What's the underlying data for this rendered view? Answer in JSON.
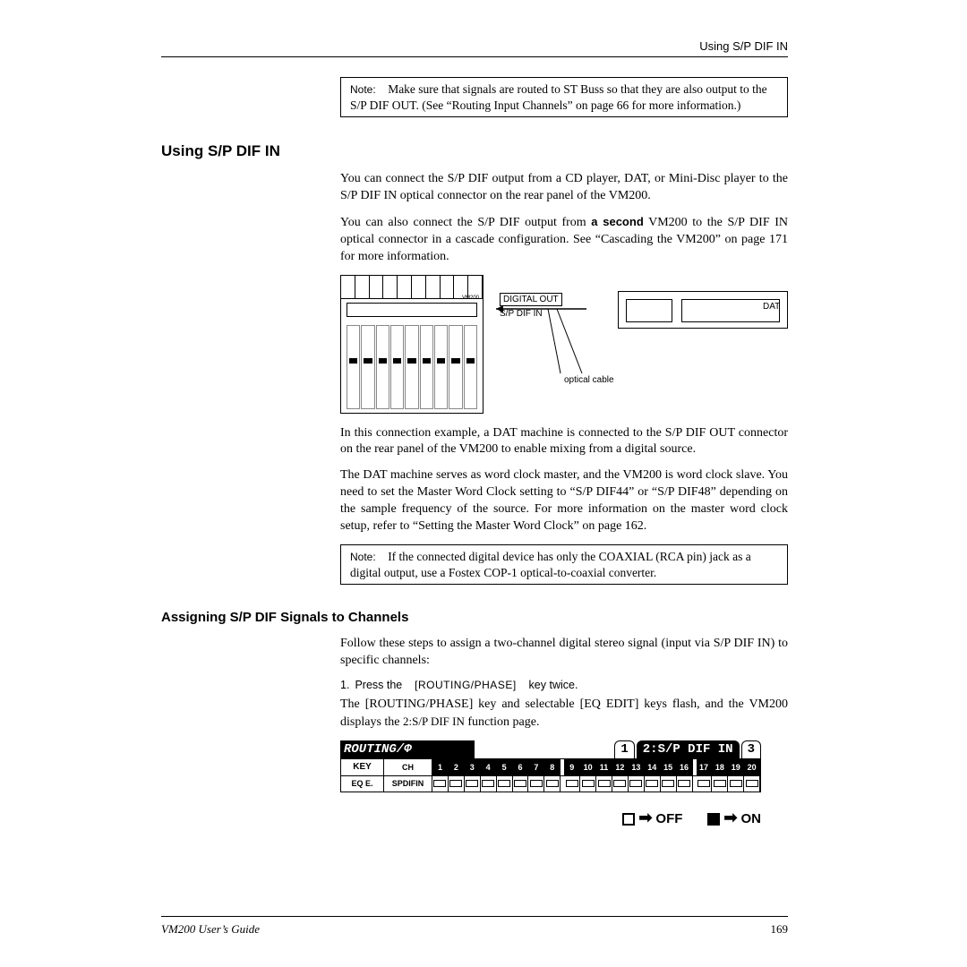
{
  "running_head": "Using S/P DIF IN",
  "note1": {
    "label": "Note:",
    "text": "Make sure that signals are routed to ST Buss so that they are also output to the S/P DIF OUT. (See “Routing Input Channels” on page 66 for more information.)"
  },
  "h1": "Using S/P DIF IN",
  "p1": "You can connect the S/P DIF output from a CD player, DAT, or Mini-Disc player to the S/P DIF IN optical connector on the rear panel of the VM200.",
  "p2a": "You can also connect the S/P DIF output from ",
  "p2_bold": "a second",
  "p2b": " VM200 to the S/P DIF IN optical connector in a cascade configuration. See “Cascading the VM200” on page 171 for more information.",
  "diagram": {
    "digital_out": "DIGITAL OUT",
    "spdif_in": "S/P DIF IN",
    "dat": "DAT",
    "optical": "optical cable",
    "brand": "VM200"
  },
  "p3": "In this connection example, a DAT machine is connected to the S/P DIF OUT connector on the rear panel of the VM200 to enable mixing from a digital source.",
  "p4": "The DAT machine serves as word clock master, and the VM200 is word clock slave. You need to set the Master Word Clock setting to “S/P DIF44” or “S/P DIF48” depending on the sample frequency of the source. For more information on the master word clock setup, refer to “Setting the Master Word Clock” on page 162.",
  "note2": {
    "label": "Note:",
    "text": "If the connected digital device has only the COAXIAL (RCA pin) jack as a digital output, use a Fostex COP-1 optical-to-coaxial converter."
  },
  "h2": "Assigning S/P DIF Signals to Channels",
  "p5": "Follow these steps to assign a two-channel digital stereo signal (input via S/P DIF IN) to specific channels:",
  "step1": {
    "num": "1.",
    "a": "Press the ",
    "key": "[ROUTING/PHASE]",
    "b": " key twice."
  },
  "p6a": "The [ROUTING/PHASE] key and selectable [EQ EDIT] keys flash, and the VM200 displays the ",
  "p6_sc": "2:S/P DIF IN",
  "p6b": " function page.",
  "lcd": {
    "title": "ROUTING/Φ",
    "tab1": "1",
    "tab2": "2:S/P DIF IN",
    "tab3": "3",
    "row_key": "KEY",
    "row_ch": "CH",
    "row_eqe": "EQ E.",
    "row_spd": "SPDIFIN",
    "channels": [
      "1",
      "2",
      "3",
      "4",
      "5",
      "6",
      "7",
      "8",
      "9",
      "10",
      "11",
      "12",
      "13",
      "14",
      "15",
      "16",
      "17",
      "18",
      "19",
      "20"
    ]
  },
  "legend": {
    "off": "OFF",
    "on": "ON"
  },
  "footer": {
    "title": "VM200 User’s Guide",
    "page": "169"
  }
}
